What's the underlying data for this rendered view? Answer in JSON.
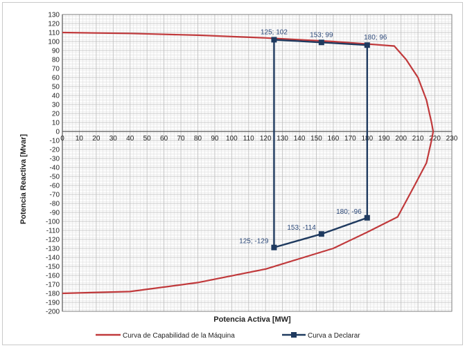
{
  "chart_data": {
    "type": "scatter",
    "title": "",
    "xlabel": "Potencia Activa [MW]",
    "ylabel": "Potencia Reactiva [Mvar]",
    "xlim": [
      0,
      230
    ],
    "ylim": [
      -200,
      130
    ],
    "x_ticks": [
      0,
      10,
      20,
      30,
      40,
      50,
      60,
      70,
      80,
      90,
      100,
      110,
      120,
      130,
      140,
      150,
      160,
      170,
      180,
      190,
      200,
      210,
      220,
      230
    ],
    "y_ticks": [
      130,
      120,
      110,
      100,
      90,
      80,
      70,
      60,
      50,
      40,
      30,
      20,
      10,
      0,
      -10,
      -20,
      -30,
      -40,
      -50,
      -60,
      -70,
      -80,
      -90,
      -100,
      -110,
      -120,
      -130,
      -140,
      -150,
      -160,
      -170,
      -180,
      -190,
      -200
    ],
    "grid": true,
    "legend_position": "bottom",
    "colors": {
      "capability": "#c0393b",
      "declare": "#1f3a5f",
      "label": "#2e4a7a",
      "grid": "#bdbdbd",
      "axis": "#7f7f7f"
    },
    "series": [
      {
        "name": "Curva de Capabilidad de la Máquina",
        "points": [
          [
            0,
            110
          ],
          [
            40,
            109
          ],
          [
            80,
            107
          ],
          [
            120,
            104
          ],
          [
            160,
            100
          ],
          [
            196,
            95
          ],
          [
            203,
            80
          ],
          [
            210,
            60
          ],
          [
            215,
            35
          ],
          [
            218,
            10
          ],
          [
            219,
            0
          ],
          [
            218,
            -10
          ],
          [
            215,
            -35
          ],
          [
            208,
            -60
          ],
          [
            198,
            -95
          ],
          [
            180,
            -112
          ],
          [
            160,
            -130
          ],
          [
            120,
            -153
          ],
          [
            80,
            -168
          ],
          [
            40,
            -178
          ],
          [
            0,
            -180
          ]
        ]
      },
      {
        "name": "Curva a Declarar",
        "points": [
          [
            125,
            102
          ],
          [
            153,
            99
          ],
          [
            180,
            96
          ],
          [
            180,
            -96
          ],
          [
            153,
            -114
          ],
          [
            125,
            -129
          ],
          [
            125,
            102
          ]
        ]
      }
    ],
    "annotations": [
      {
        "x": 125,
        "y": 102,
        "text": "125; 102",
        "pos": "above"
      },
      {
        "x": 153,
        "y": 99,
        "text": "153; 99",
        "pos": "above"
      },
      {
        "x": 180,
        "y": 96,
        "text": "180; 96",
        "pos": "above-right"
      },
      {
        "x": 180,
        "y": -96,
        "text": "180; -96",
        "pos": "above-left"
      },
      {
        "x": 153,
        "y": -114,
        "text": "153; -114",
        "pos": "above-left"
      },
      {
        "x": 125,
        "y": -129,
        "text": "125; -129",
        "pos": "above-left"
      }
    ]
  }
}
